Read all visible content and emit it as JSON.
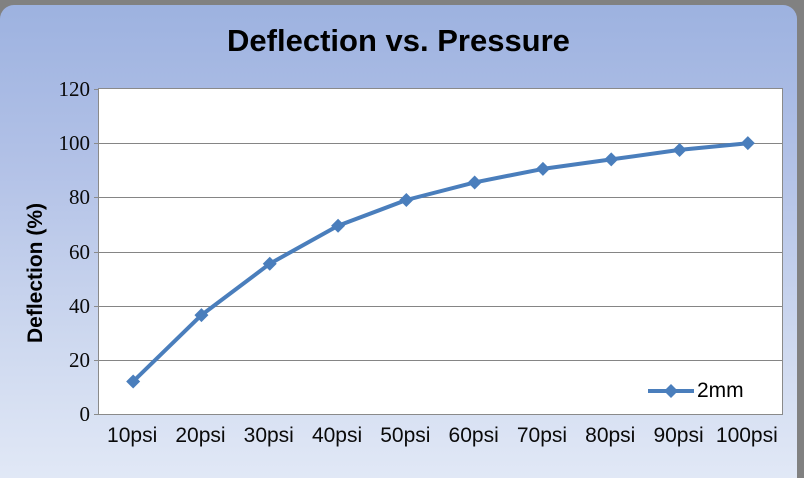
{
  "chart_data": {
    "type": "line",
    "title": "Deflection vs. Pressure",
    "xlabel": "",
    "ylabel": "Deflection (%)",
    "categories": [
      "10psi",
      "20psi",
      "30psi",
      "40psi",
      "50psi",
      "60psi",
      "70psi",
      "80psi",
      "90psi",
      "100psi"
    ],
    "series": [
      {
        "name": "2mm",
        "values": [
          12,
          36.5,
          55.5,
          69.5,
          79,
          85.5,
          90.5,
          94,
          97.5,
          100
        ],
        "color": "#4a7ebc",
        "marker": "diamond"
      }
    ],
    "ylim": [
      0,
      120
    ],
    "ytick_step": 20,
    "yticks": [
      0,
      20,
      40,
      60,
      80,
      100,
      120
    ],
    "grid": true,
    "gridline_color": "#858585",
    "plot_border_color": "#8a8a8a",
    "legend_position": "inside-bottom-right",
    "background": {
      "frame_color": "#818181",
      "gradient_top": "#9db2e0",
      "gradient_bottom": "#e1e8f6",
      "plot_fill": "#ffffff"
    }
  }
}
